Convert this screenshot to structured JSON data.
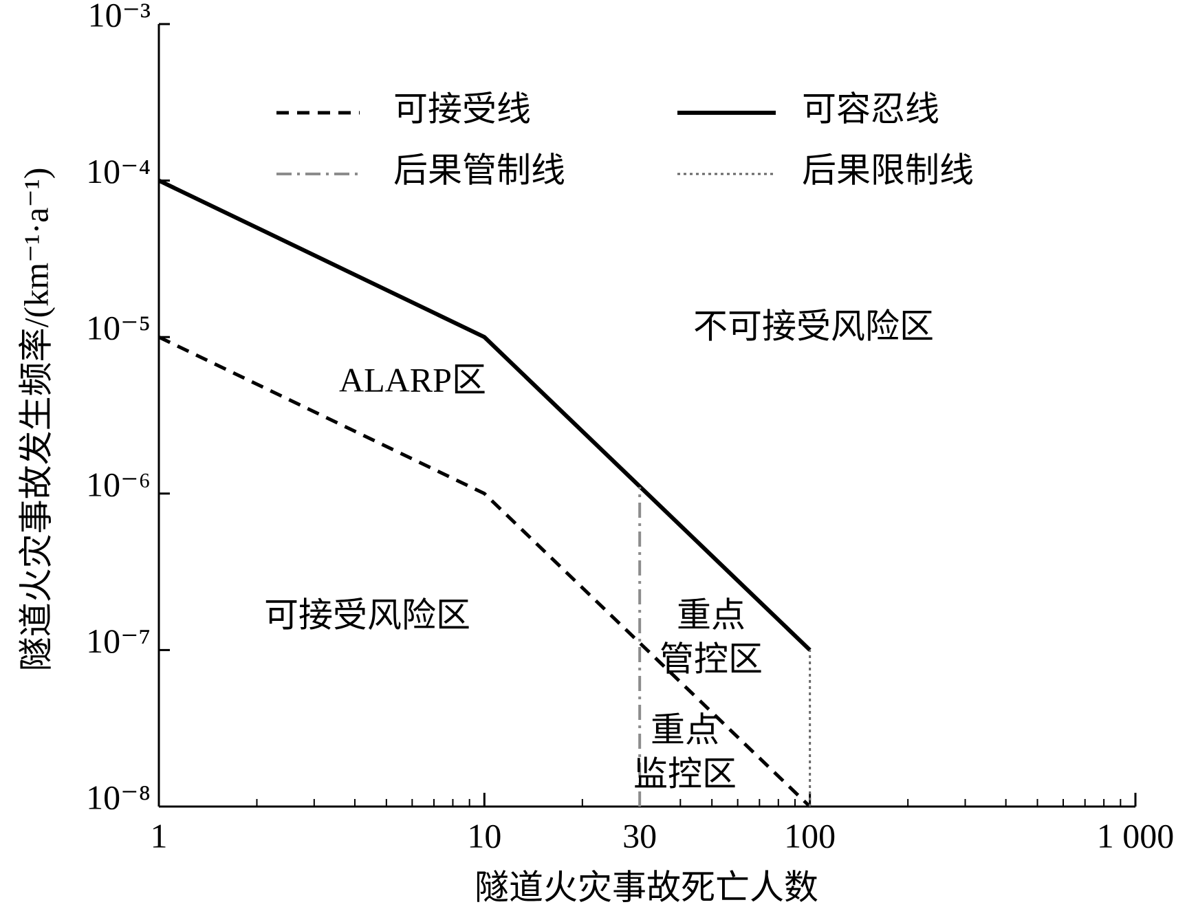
{
  "chart_data": {
    "type": "line",
    "xlabel": "隧道火灾事故死亡人数",
    "ylabel": "隧道火灾事故发生频率/(km⁻¹·a⁻¹)",
    "xscale": "log",
    "yscale": "log",
    "xlim": [
      1,
      1000
    ],
    "ylim": [
      1e-08,
      0.001
    ],
    "xticks": [
      1,
      10,
      30,
      100,
      {
        "value": 1000,
        "label": "1 000"
      }
    ],
    "xminorticks": [
      2,
      3,
      4,
      5,
      6,
      7,
      8,
      9,
      20,
      40,
      50,
      60,
      70,
      80,
      90,
      200,
      300,
      400,
      500,
      600,
      700,
      800,
      900
    ],
    "yticks": [
      {
        "value": 1e-08,
        "label": "10⁻⁸"
      },
      {
        "value": 1e-07,
        "label": "10⁻⁷"
      },
      {
        "value": 1e-06,
        "label": "10⁻⁶"
      },
      {
        "value": 1e-05,
        "label": "10⁻⁵"
      },
      {
        "value": 0.0001,
        "label": "10⁻⁴"
      },
      {
        "value": 0.001,
        "label": "10⁻³"
      }
    ],
    "legend": {
      "loc": "upper center",
      "ncol": 2
    },
    "series": [
      {
        "name": "可接受线",
        "color": "#000000",
        "style": "dashed",
        "x": [
          1,
          10,
          100
        ],
        "values": [
          1e-05,
          1e-06,
          1e-08
        ]
      },
      {
        "name": "可容忍线",
        "color": "#000000",
        "style": "solid",
        "x": [
          1,
          10,
          100
        ],
        "values": [
          0.0001,
          1e-05,
          1e-07
        ]
      },
      {
        "name": "后果管制线",
        "color": "#8c8c8c",
        "style": "dashdot",
        "x": [
          30,
          30
        ],
        "values": [
          1e-08,
          1.1e-06
        ]
      },
      {
        "name": "后果限制线",
        "color": "#666666",
        "style": "dotted",
        "x": [
          100,
          100
        ],
        "values": [
          1e-08,
          1e-07
        ]
      }
    ],
    "annotations": [
      [
        "不可接受风险区"
      ],
      [
        "ALARP区"
      ],
      [
        "可接受风险区"
      ],
      [
        "重点",
        "管控区"
      ],
      [
        "重点",
        "监控区"
      ]
    ]
  }
}
